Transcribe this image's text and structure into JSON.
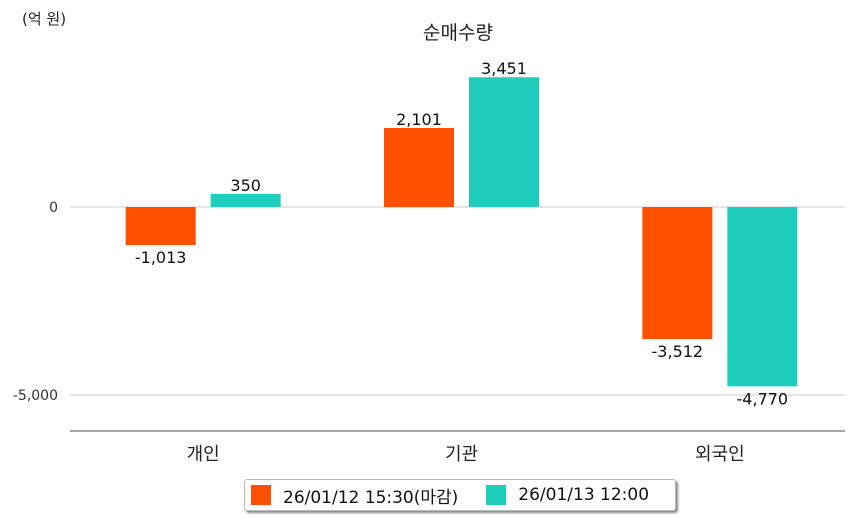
{
  "chart_data": {
    "type": "bar",
    "title": "순매수량",
    "unit_label": "(억 원)",
    "categories": [
      "개인",
      "기관",
      "외국인"
    ],
    "series": [
      {
        "name": "26/01/12 15:30(마감)",
        "color": "#FF5000",
        "values": [
          -1013,
          2101,
          -3512
        ],
        "labels": [
          "-1,013",
          "2,101",
          "-3,512"
        ]
      },
      {
        "name": "26/01/13 12:00",
        "color": "#1ECDBC",
        "values": [
          350,
          3451,
          -4770
        ],
        "labels": [
          "350",
          "3,451",
          "-4,770"
        ]
      }
    ],
    "yticks": [
      0,
      -5000
    ],
    "ytick_labels": [
      "0",
      "-5,000"
    ],
    "grid": true,
    "legend": "bottom"
  }
}
